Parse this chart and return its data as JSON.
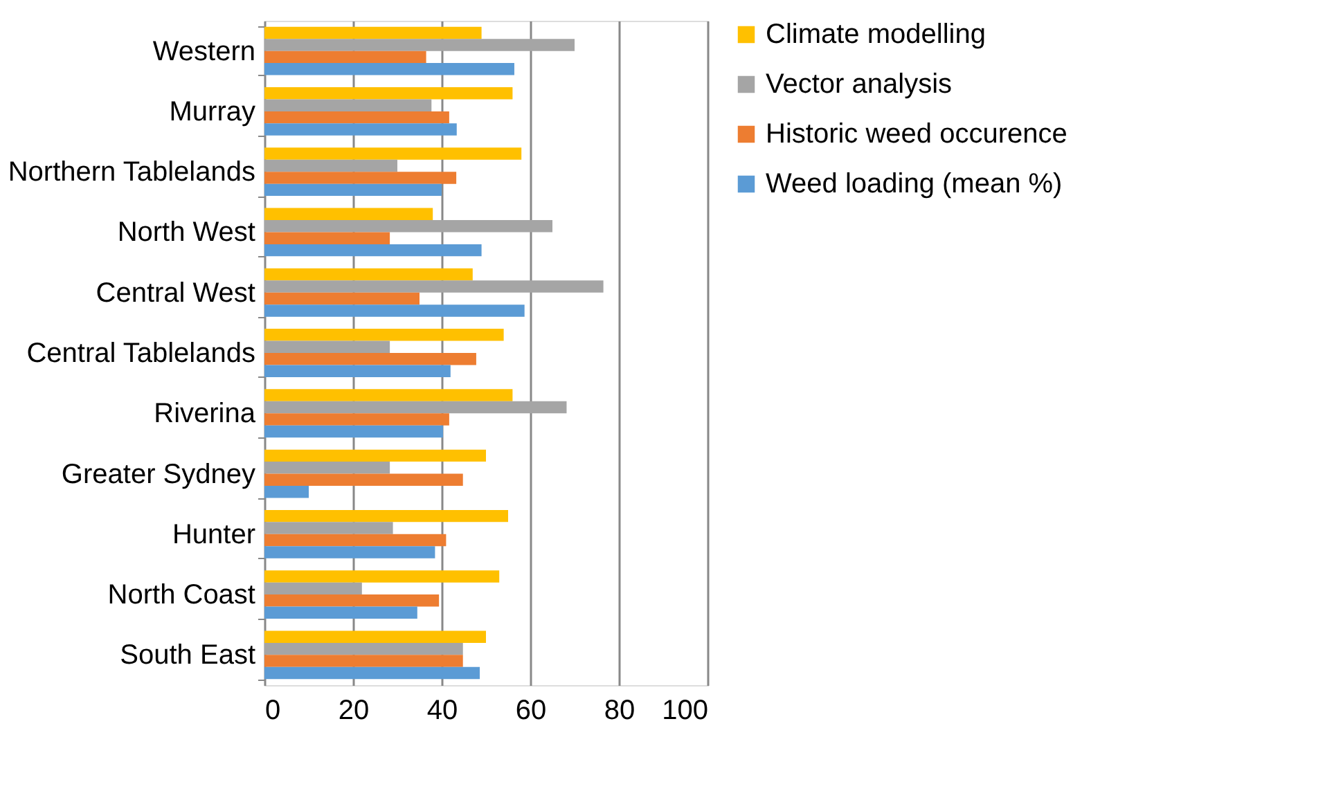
{
  "chart_data": {
    "type": "bar",
    "orientation": "horizontal",
    "categories": [
      "Western",
      "Murray",
      "Northern Tablelands",
      "North West",
      "Central West",
      "Central Tablelands",
      "Riverina",
      "Greater Sydney",
      "Hunter",
      "North Coast",
      "South East"
    ],
    "series": [
      {
        "name": "Climate modelling",
        "color": "#ffc000",
        "values": [
          49,
          56,
          58,
          38,
          47,
          54,
          56,
          50,
          55,
          53,
          50
        ]
      },
      {
        "name": "Vector analysis",
        "color": "#a5a5a5",
        "values": [
          70,
          37.7,
          30,
          65,
          76.5,
          28.3,
          68.2,
          28.3,
          29,
          22,
          44.8
        ]
      },
      {
        "name": "Historic weed occurence",
        "color": "#ed7d31",
        "values": [
          36.5,
          41.7,
          43.3,
          28.3,
          35,
          47.8,
          41.7,
          44.8,
          41,
          39.4,
          44.8
        ]
      },
      {
        "name": "Weed loading  (mean %)",
        "color": "#5b9bd5",
        "values": [
          56.4,
          43.4,
          40,
          49,
          58.7,
          42,
          40.3,
          10,
          38.5,
          34.5,
          48.6
        ]
      }
    ],
    "xlim": [
      0,
      100
    ],
    "xticks": [
      0,
      20,
      40,
      60,
      80,
      100
    ],
    "grid": "x",
    "legend": "right"
  }
}
